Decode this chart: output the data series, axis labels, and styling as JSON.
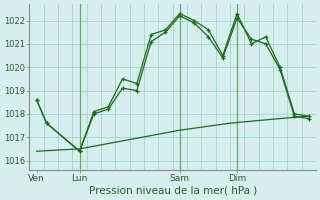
{
  "background_color": "#d6eeee",
  "grid_color": "#b0d4d4",
  "line_color": "#1a6b1a",
  "vline_color": "#6aaa6a",
  "title": "Pression niveau de la mer( hPa )",
  "ylabel_values": [
    1016,
    1017,
    1018,
    1019,
    1020,
    1021,
    1022
  ],
  "ylim": [
    1015.6,
    1022.7
  ],
  "x_tick_labels": [
    "Ven",
    "Lun",
    "Sam",
    "Dim"
  ],
  "x_tick_positions": [
    0.5,
    3.5,
    10.5,
    14.5
  ],
  "xlim": [
    0,
    20
  ],
  "num_xgrid": 21,
  "line1_x": [
    0.5,
    1.2,
    3.5,
    4.5,
    5.5,
    6.5,
    7.5,
    8.5,
    9.5,
    10.5,
    11.5,
    12.5,
    13.5,
    14.5,
    15.5,
    16.5,
    17.5,
    18.5,
    19.5
  ],
  "line1_y": [
    1018.6,
    1017.6,
    1016.4,
    1018.1,
    1018.3,
    1019.5,
    1019.3,
    1021.4,
    1021.6,
    1022.3,
    1022.0,
    1021.6,
    1020.5,
    1022.3,
    1021.0,
    1021.3,
    1020.0,
    1018.0,
    1017.9
  ],
  "line2_x": [
    0.5,
    1.2,
    3.5,
    4.5,
    5.5,
    6.5,
    7.5,
    8.5,
    9.5,
    10.5,
    11.5,
    12.5,
    13.5,
    14.5,
    15.5,
    16.5,
    17.5,
    18.5,
    19.5
  ],
  "line2_y": [
    1018.6,
    1017.6,
    1016.4,
    1018.0,
    1018.2,
    1019.1,
    1019.0,
    1021.1,
    1021.5,
    1022.2,
    1021.9,
    1021.3,
    1020.4,
    1022.1,
    1021.2,
    1021.0,
    1019.9,
    1017.9,
    1017.8
  ],
  "line3_x": [
    0.5,
    3.5,
    7.0,
    10.5,
    14.0,
    17.5,
    19.5
  ],
  "line3_y": [
    1016.4,
    1016.5,
    1016.9,
    1017.3,
    1017.6,
    1017.8,
    1017.9
  ],
  "vlines_x": [
    3.5,
    10.5,
    14.5
  ],
  "title_color": "#2a5a2a",
  "title_fontsize": 7.5,
  "tick_fontsize": 6.5,
  "ytick_fontsize": 6.0
}
